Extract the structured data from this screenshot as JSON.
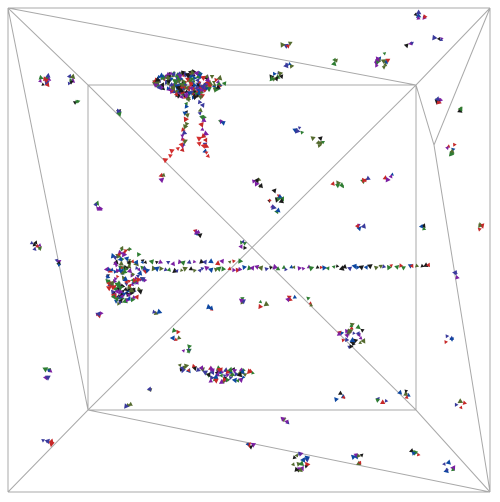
{
  "scene": {
    "background": "#ffffff",
    "line_color": "#a8a8a8",
    "glyph_palette": [
      "#1a1a1a",
      "#2e7d32",
      "#3a3a9c",
      "#7b1fa2",
      "#c62828",
      "#0d47a1",
      "#556b2f"
    ],
    "highlight_color": "#d32f2f",
    "glyph_shape": "small triangle"
  }
}
